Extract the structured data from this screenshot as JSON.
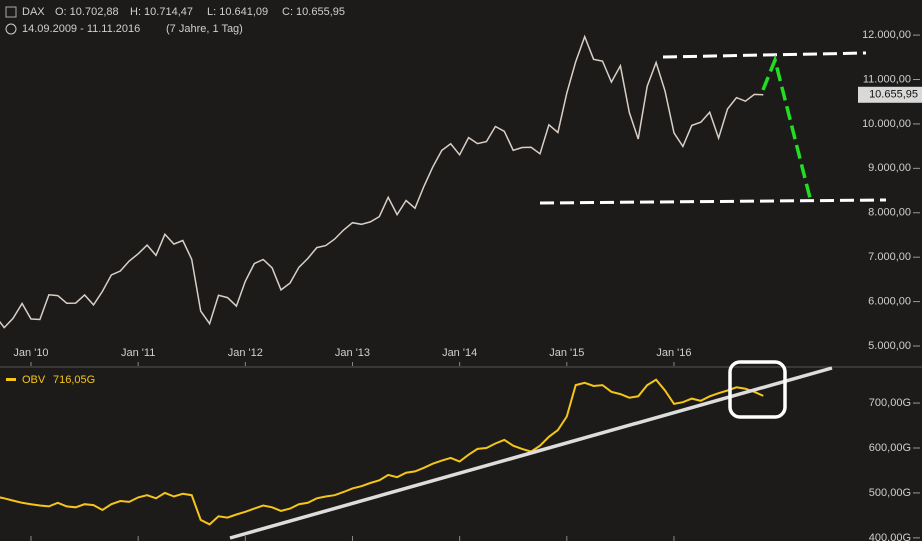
{
  "header": {
    "symbol": "DAX",
    "open": "O: 10.702,88",
    "high": "H: 10.714,47",
    "low": "L: 10.641,09",
    "close": "C: 10.655,95",
    "range": "14.09.2009 - 11.11.2016",
    "period": "(7 Jahre, 1 Tag)"
  },
  "chart_data": [
    {
      "type": "line",
      "categories": [
        null,
        null,
        null,
        null,
        "Jan '10",
        null,
        null,
        null,
        null,
        null,
        null,
        null,
        null,
        null,
        null,
        null,
        "Jan '11",
        null,
        null,
        null,
        null,
        null,
        null,
        null,
        null,
        null,
        null,
        null,
        "Jan '12",
        null,
        null,
        null,
        null,
        null,
        null,
        null,
        null,
        null,
        null,
        null,
        "Jan '13",
        null,
        null,
        null,
        null,
        null,
        null,
        null,
        null,
        null,
        null,
        null,
        "Jan '14",
        null,
        null,
        null,
        null,
        null,
        null,
        null,
        null,
        null,
        null,
        null,
        "Jan '15",
        null,
        null,
        null,
        null,
        null,
        null,
        null,
        null,
        null,
        null,
        null,
        "Jan '16",
        null,
        null,
        null,
        null,
        null,
        null,
        null,
        null,
        null,
        null
      ],
      "series": [
        {
          "name": "DAX",
          "color": "#d9cfc6",
          "values": [
            5675,
            5415,
            5625,
            5957,
            5608,
            5598,
            6154,
            6136,
            5964,
            5966,
            6148,
            5925,
            6229,
            6601,
            6688,
            6914,
            7077,
            7273,
            7041,
            7514,
            7294,
            7376,
            6953,
            5785,
            5502,
            6141,
            6089,
            5898,
            6458,
            6856,
            6947,
            6761,
            6264,
            6416,
            6772,
            6970,
            7216,
            7260,
            7406,
            7612,
            7776,
            7741,
            7795,
            7914,
            8348,
            7959,
            8276,
            8103,
            8594,
            9033,
            9405,
            9552,
            9306,
            9692,
            9556,
            9603,
            9943,
            9833,
            9407,
            9470,
            9474,
            9327,
            9980,
            9806,
            10694,
            11402,
            11966,
            11454,
            11414,
            10945,
            11309,
            10259,
            9660,
            10850,
            11382,
            10743,
            9798,
            9495,
            9966,
            10039,
            10263,
            9680,
            10337,
            10593,
            10511,
            10665,
            10656
          ]
        }
      ],
      "last_label": "10.655,95",
      "ylim": [
        4550,
        12790
      ],
      "yticks": [
        {
          "value": 5000,
          "label": "5.000,00"
        },
        {
          "value": 6000,
          "label": "6.000,00"
        },
        {
          "value": 7000,
          "label": "7.000,00"
        },
        {
          "value": 8000,
          "label": "8.000,00"
        },
        {
          "value": 9000,
          "label": "9.000,00"
        },
        {
          "value": 10000,
          "label": "10.000,00"
        },
        {
          "value": 11000,
          "label": "11.000,00"
        },
        {
          "value": 12000,
          "label": "12.000,00"
        }
      ]
    },
    {
      "type": "line",
      "series": [
        {
          "name": "OBV",
          "color": "#f5c518",
          "values": [
            492,
            488,
            483,
            478,
            475,
            472,
            470,
            478,
            470,
            468,
            475,
            473,
            462,
            475,
            482,
            480,
            490,
            495,
            488,
            500,
            492,
            498,
            495,
            440,
            430,
            448,
            445,
            452,
            458,
            465,
            472,
            468,
            460,
            465,
            475,
            478,
            488,
            492,
            495,
            502,
            510,
            515,
            522,
            528,
            540,
            535,
            545,
            548,
            556,
            565,
            572,
            578,
            570,
            585,
            598,
            600,
            610,
            618,
            605,
            598,
            592,
            605,
            625,
            640,
            670,
            740,
            745,
            738,
            740,
            725,
            720,
            712,
            715,
            740,
            752,
            728,
            698,
            702,
            710,
            705,
            715,
            722,
            728,
            735,
            732,
            725,
            716
          ]
        }
      ],
      "legend_value": "716,05G",
      "ylim": [
        393,
        778
      ],
      "yticks": [
        {
          "value": 400,
          "label": "400,00G"
        },
        {
          "value": 500,
          "label": "500,00G"
        },
        {
          "value": 600,
          "label": "600,00G"
        },
        {
          "value": 700,
          "label": "700,00G"
        }
      ]
    }
  ]
}
